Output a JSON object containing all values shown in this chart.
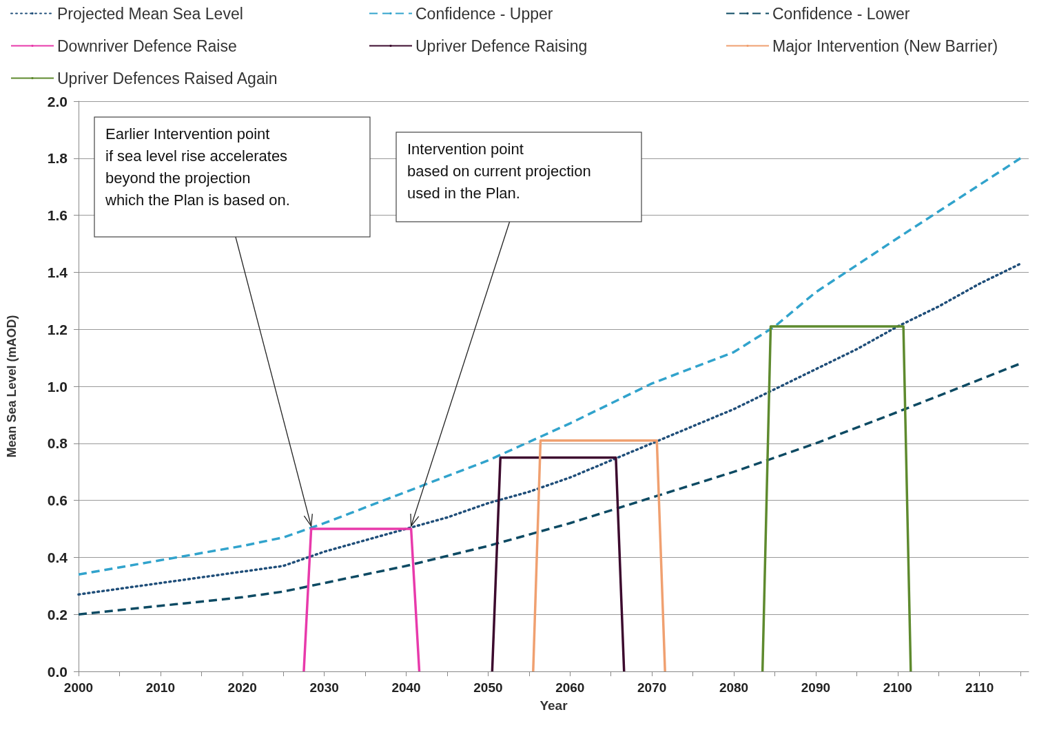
{
  "chart_data": {
    "type": "line",
    "xlabel": "Year",
    "ylabel": "Mean Sea Level (mAOD)",
    "xlim": [
      2000,
      2116
    ],
    "xticks": [
      2000,
      {
        "value": 2005,
        "label": null
      },
      2010,
      {
        "value": 2015,
        "label": null
      },
      2020,
      {
        "value": 2025,
        "label": null
      },
      2030,
      {
        "value": 2035,
        "label": null
      },
      2040,
      {
        "value": 2045,
        "label": null
      },
      2050,
      {
        "value": 2055,
        "label": null
      },
      2060,
      {
        "value": 2065,
        "label": null
      },
      2070,
      {
        "value": 2075,
        "label": null
      },
      2080,
      {
        "value": 2085,
        "label": null
      },
      2090,
      {
        "value": 2095,
        "label": null
      },
      2100,
      {
        "value": 2105,
        "label": null
      },
      2110,
      {
        "value": 2115,
        "label": null
      }
    ],
    "ylim": [
      0,
      2
    ],
    "yticks": [
      {
        "value": 0,
        "label": "0.0"
      },
      {
        "value": 0.2,
        "label": "0.2"
      },
      {
        "value": 0.4,
        "label": "0.4"
      },
      {
        "value": 0.6,
        "label": "0.6"
      },
      {
        "value": 0.8,
        "label": "0.8"
      },
      {
        "value": 1,
        "label": "1.0"
      },
      {
        "value": 1.2,
        "label": "1.2"
      },
      {
        "value": 1.4,
        "label": "1.4"
      },
      {
        "value": 1.6,
        "label": "1.6"
      },
      {
        "value": 1.8,
        "label": "1.8"
      },
      {
        "value": 2,
        "label": "2.0"
      }
    ],
    "grid": "y",
    "legend": "top",
    "marker": "none",
    "series": [
      {
        "name": "Projected Mean Sea Level",
        "color": "#1f4e79",
        "line_style": "dotted",
        "x": [
          2000,
          2005,
          2010,
          2015,
          2020,
          2025,
          2028,
          2030,
          2035,
          2040,
          2045,
          2050,
          2055,
          2060,
          2065,
          2070,
          2075,
          2080,
          2085,
          2090,
          2095,
          2100,
          2105,
          2110,
          2115
        ],
        "values": [
          0.27,
          0.29,
          0.31,
          0.33,
          0.35,
          0.37,
          0.4,
          0.42,
          0.46,
          0.5,
          0.54,
          0.59,
          0.63,
          0.68,
          0.74,
          0.8,
          0.86,
          0.92,
          0.99,
          1.06,
          1.13,
          1.21,
          1.28,
          1.36,
          1.43
        ]
      },
      {
        "name": "Confidence - Upper",
        "color": "#31a3cc",
        "line_style": "dashed",
        "x": [
          2000,
          2010,
          2020,
          2025,
          2028,
          2030,
          2040,
          2050,
          2060,
          2070,
          2080,
          2085,
          2090,
          2100,
          2115
        ],
        "values": [
          0.34,
          0.39,
          0.44,
          0.47,
          0.5,
          0.52,
          0.63,
          0.74,
          0.87,
          1.01,
          1.12,
          1.21,
          1.33,
          1.52,
          1.8
        ]
      },
      {
        "name": "Confidence - Lower",
        "color": "#0d4a63",
        "line_style": "dashed",
        "x": [
          2000,
          2010,
          2020,
          2025,
          2030,
          2040,
          2050,
          2060,
          2070,
          2080,
          2090,
          2100,
          2115
        ],
        "values": [
          0.2,
          0.23,
          0.26,
          0.28,
          0.31,
          0.37,
          0.44,
          0.52,
          0.61,
          0.7,
          0.8,
          0.91,
          1.08
        ]
      },
      {
        "name": "Downriver Defence Raise",
        "color": "#e83aab",
        "line_style": "solid",
        "x": [
          2027.5,
          2028.4,
          2040.6,
          2041.6
        ],
        "values": [
          0,
          0.5,
          0.5,
          0
        ]
      },
      {
        "name": "Upriver Defence Raising",
        "color": "#3c0a2e",
        "line_style": "solid",
        "x": [
          2050.5,
          2051.5,
          2065.6,
          2066.6
        ],
        "values": [
          0,
          0.75,
          0.75,
          0
        ]
      },
      {
        "name": "Major Intervention (New Barrier)",
        "color": "#f0a070",
        "line_style": "solid",
        "x": [
          2055.5,
          2056.4,
          2070.6,
          2071.6
        ],
        "values": [
          0,
          0.81,
          0.81,
          0
        ]
      },
      {
        "name": "Upriver Defences Raised Again",
        "color": "#5e8a2e",
        "line_style": "solid",
        "x": [
          2083.5,
          2084.5,
          2100.7,
          2101.6
        ],
        "values": [
          0,
          1.21,
          1.21,
          0
        ]
      }
    ],
    "annotations": [
      {
        "text": "Earlier Intervention point\nif sea level rise accelerates\nbeyond the projection\nwhich the Plan is based on.",
        "x": 2028.4,
        "y": 0.5
      },
      {
        "text": "Intervention point\nbased on current projection\nused in the Plan.",
        "x": 2040.6,
        "y": 0.5
      }
    ]
  }
}
